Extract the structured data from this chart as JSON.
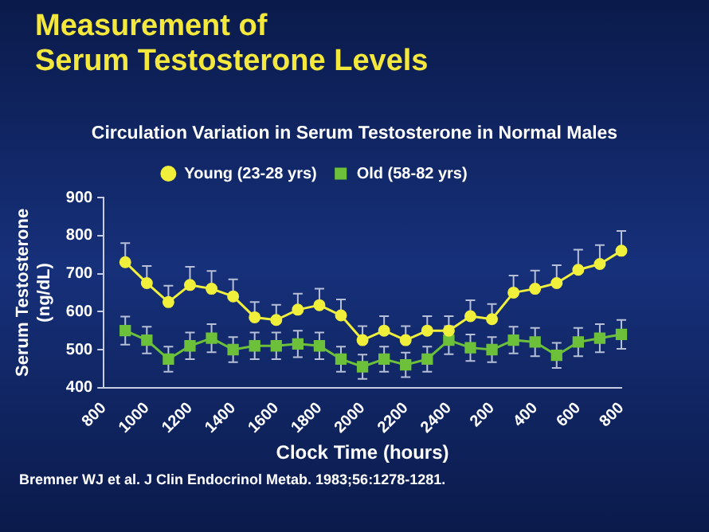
{
  "chart_data": {
    "type": "line",
    "title": "Measurement of\nSerum Testosterone Levels",
    "subtitle": "Circulation Variation in Serum Testosterone in Normal Males",
    "xlabel": "Clock Time (hours)",
    "ylabel": "Serum Testosterone (ng/dL)",
    "annotations": [
      "Bremner WJ et al. J Clin Endocrinol Metab. 1983;56:1278-1281."
    ],
    "categories": [
      "800",
      null,
      "1000",
      null,
      "1200",
      null,
      "1400",
      null,
      "1600",
      null,
      "1800",
      null,
      "2000",
      null,
      "2200",
      null,
      "2400",
      null,
      "200",
      null,
      "400",
      null,
      "600",
      null,
      "800"
    ],
    "series": [
      {
        "name": "Young (23-28 yrs)",
        "color": "#f0f03c",
        "marker": "circle",
        "values": [
          null,
          730,
          675,
          625,
          670,
          660,
          640,
          585,
          578,
          605,
          617,
          590,
          525,
          550,
          525,
          550,
          550,
          588,
          580,
          650,
          660,
          675,
          710,
          725,
          760
        ],
        "errors": [
          null,
          [
            730,
            780
          ],
          [
            675,
            720
          ],
          [
            625,
            668
          ],
          [
            670,
            718
          ],
          [
            660,
            707
          ],
          [
            640,
            685
          ],
          [
            585,
            625
          ],
          [
            578,
            618
          ],
          [
            605,
            647
          ],
          [
            617,
            660
          ],
          [
            590,
            632
          ],
          [
            525,
            562
          ],
          [
            550,
            588
          ],
          [
            525,
            562
          ],
          [
            550,
            588
          ],
          [
            550,
            588
          ],
          [
            588,
            630
          ],
          [
            580,
            620
          ],
          [
            650,
            695
          ],
          [
            660,
            708
          ],
          [
            675,
            722
          ],
          [
            710,
            763
          ],
          [
            725,
            775
          ],
          [
            760,
            812
          ]
        ]
      },
      {
        "name": "Old (58-82 yrs)",
        "color": "#6cc03a",
        "marker": "square",
        "values": [
          null,
          550,
          525,
          475,
          510,
          530,
          500,
          510,
          510,
          515,
          510,
          475,
          455,
          475,
          460,
          475,
          525,
          505,
          500,
          525,
          520,
          485,
          520,
          530,
          540
        ],
        "errors": [
          null,
          37,
          35,
          33,
          35,
          37,
          33,
          35,
          35,
          35,
          35,
          33,
          32,
          33,
          32,
          33,
          37,
          35,
          33,
          35,
          37,
          33,
          37,
          37,
          38
        ]
      }
    ],
    "ylim": [
      400,
      900
    ],
    "yticks": [
      400,
      500,
      600,
      700,
      800,
      900
    ],
    "grid": false,
    "legend": "top",
    "line_style": "solid"
  }
}
